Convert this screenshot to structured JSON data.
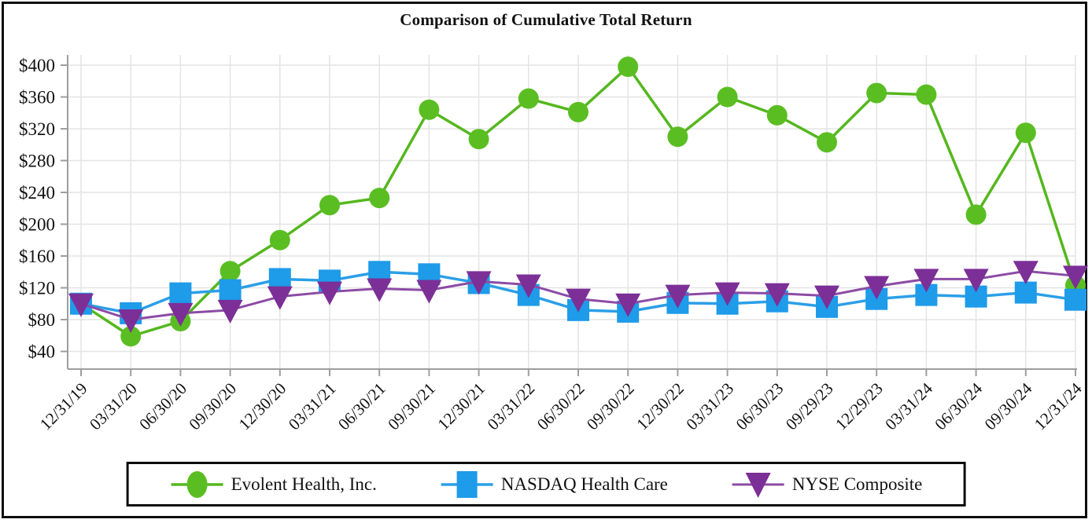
{
  "title": "Comparison of Cumulative Total Return",
  "chart_data": {
    "type": "line",
    "title": "Comparison of Cumulative Total Return",
    "categories": [
      "12/31/19",
      "03/31/20",
      "06/30/20",
      "09/30/20",
      "12/30/20",
      "03/31/21",
      "06/30/21",
      "09/30/21",
      "12/30/21",
      "03/31/22",
      "06/30/22",
      "09/30/22",
      "12/30/22",
      "03/31/23",
      "06/30/23",
      "09/29/23",
      "12/29/23",
      "03/31/24",
      "06/30/24",
      "09/30/24",
      "12/31/24"
    ],
    "series": [
      {
        "name": "Evolent Health, Inc.",
        "marker": "circle",
        "color": "#5ABE23",
        "line_color": "#55B71E",
        "values": [
          100,
          59,
          78,
          141,
          180,
          224,
          233,
          344,
          307,
          358,
          341,
          398,
          310,
          360,
          337,
          303,
          365,
          363,
          212,
          315,
          123
        ]
      },
      {
        "name": "NASDAQ Health Care",
        "marker": "square",
        "color": "#1E9BE9",
        "line_color": "#2B9FE8",
        "values": [
          100,
          88,
          113,
          117,
          131,
          129,
          140,
          137,
          126,
          111,
          92,
          90,
          101,
          100,
          103,
          96,
          106,
          111,
          109,
          114,
          105
        ]
      },
      {
        "name": "NYSE Composite",
        "marker": "triangle-down",
        "color": "#7C2F97",
        "line_color": "#8C4BA5",
        "values": [
          100,
          80,
          88,
          92,
          109,
          115,
          119,
          117,
          128,
          124,
          106,
          100,
          111,
          114,
          113,
          110,
          122,
          131,
          131,
          141,
          135
        ]
      }
    ],
    "yticks": [
      40,
      80,
      120,
      160,
      200,
      240,
      280,
      320,
      360,
      400
    ],
    "ytick_prefix": "$",
    "ylim": [
      20,
      410
    ],
    "grid": true,
    "legend_position": "bottom",
    "axis_color": "#9e9e9e",
    "grid_color": "#e4e4e4"
  }
}
